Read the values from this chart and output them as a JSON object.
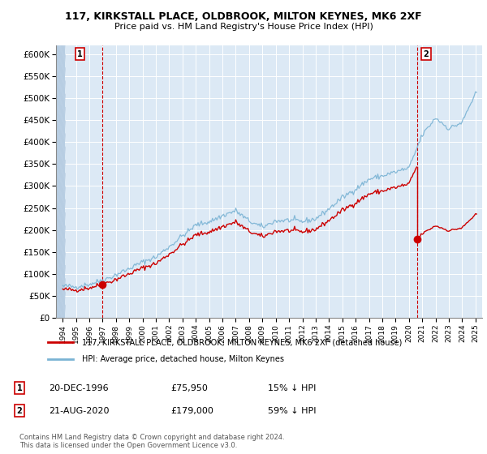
{
  "title1": "117, KIRKSTALL PLACE, OLDBROOK, MILTON KEYNES, MK6 2XF",
  "title2": "Price paid vs. HM Land Registry's House Price Index (HPI)",
  "legend_label1": "117, KIRKSTALL PLACE, OLDBROOK, MILTON KEYNES, MK6 2XF (detached house)",
  "legend_label2": "HPI: Average price, detached house, Milton Keynes",
  "annotation1_date": "20-DEC-1996",
  "annotation1_price": "£75,950",
  "annotation1_hpi": "15% ↓ HPI",
  "annotation2_date": "21-AUG-2020",
  "annotation2_price": "£179,000",
  "annotation2_hpi": "59% ↓ HPI",
  "footnote": "Contains HM Land Registry data © Crown copyright and database right 2024.\nThis data is licensed under the Open Government Licence v3.0.",
  "sale1_year": 1996.97,
  "sale1_value": 75950,
  "sale2_year": 2020.64,
  "sale2_value": 179000,
  "hpi_color": "#7ab3d4",
  "sale_color": "#cc0000",
  "ylim_min": 0,
  "ylim_max": 620000,
  "xlim_min": 1993.5,
  "xlim_max": 2025.5,
  "bg_color": "#dce9f5",
  "hatch_color": "#c0d4e8"
}
